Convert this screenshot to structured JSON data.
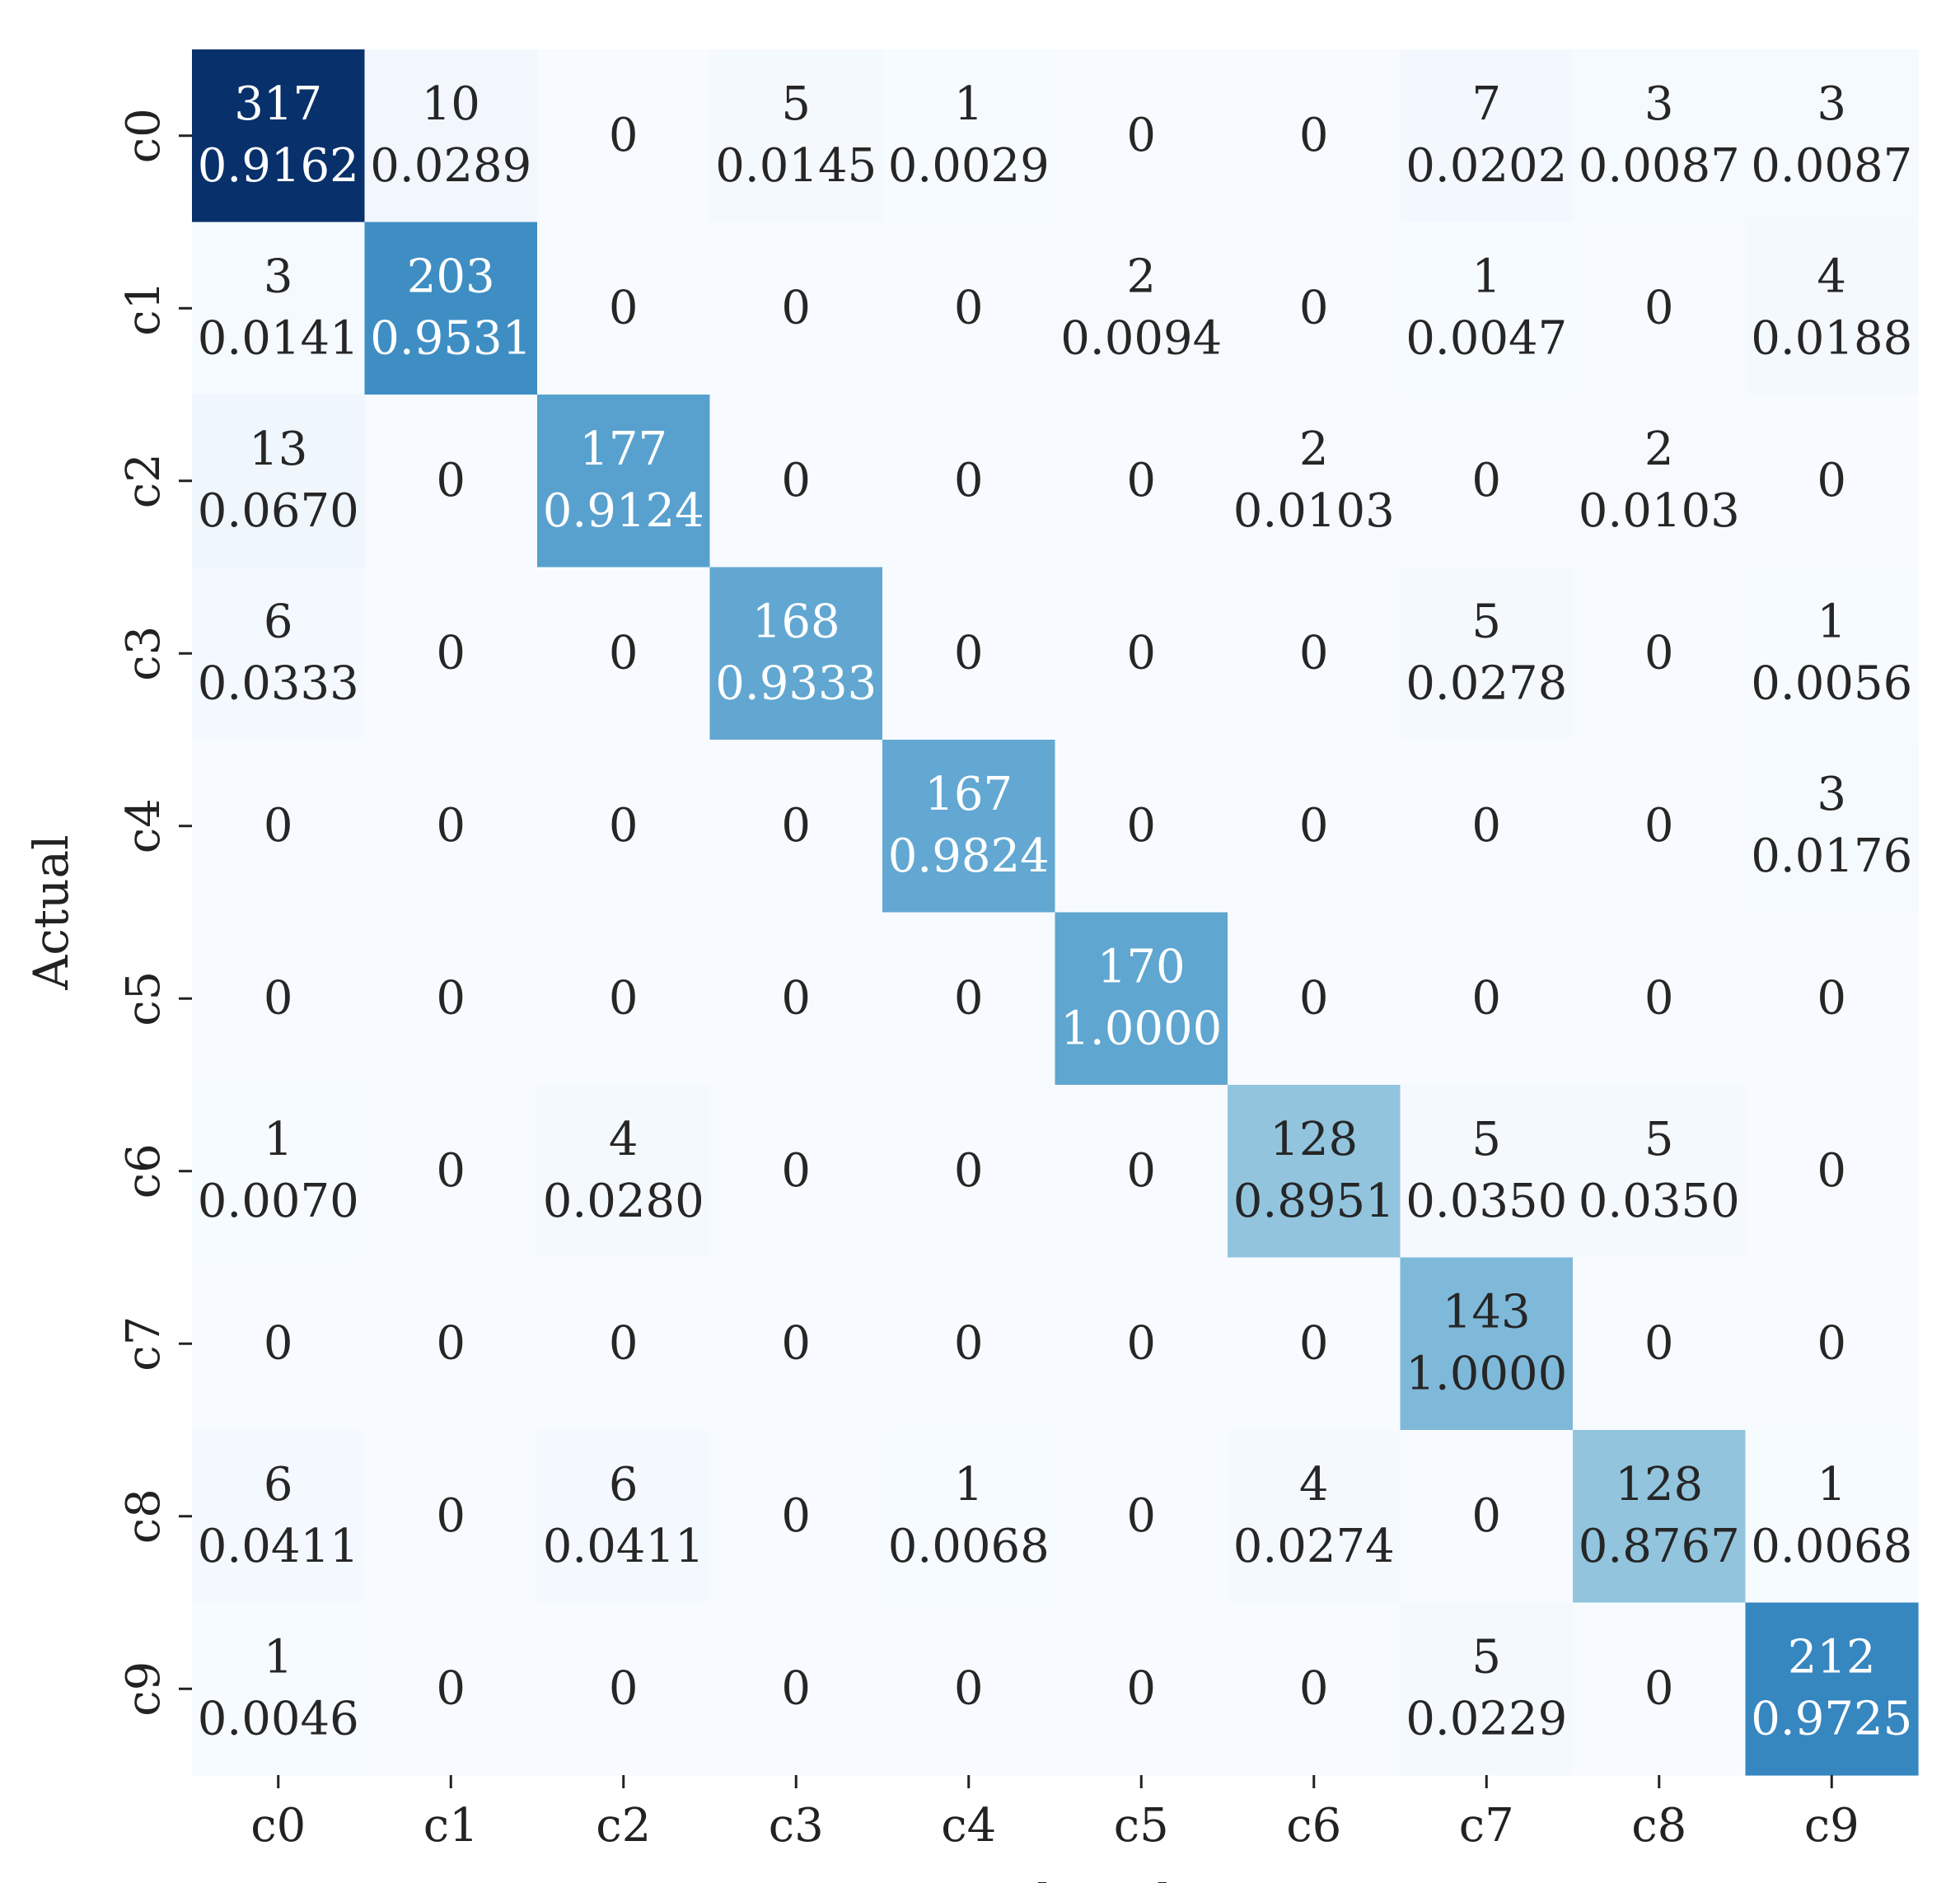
{
  "chart_data": {
    "type": "heatmap",
    "title": "",
    "xlabel": "Predicted",
    "ylabel": "Actual",
    "x_categories": [
      "c0",
      "c1",
      "c2",
      "c3",
      "c4",
      "c5",
      "c6",
      "c7",
      "c8",
      "c9"
    ],
    "y_categories": [
      "c0",
      "c1",
      "c2",
      "c3",
      "c4",
      "c5",
      "c6",
      "c7",
      "c8",
      "c9"
    ],
    "counts": [
      [
        317,
        10,
        0,
        5,
        1,
        0,
        0,
        7,
        3,
        3
      ],
      [
        3,
        203,
        0,
        0,
        0,
        2,
        0,
        1,
        0,
        4
      ],
      [
        13,
        0,
        177,
        0,
        0,
        0,
        2,
        0,
        2,
        0
      ],
      [
        6,
        0,
        0,
        168,
        0,
        0,
        0,
        5,
        0,
        1
      ],
      [
        0,
        0,
        0,
        0,
        167,
        0,
        0,
        0,
        0,
        3
      ],
      [
        0,
        0,
        0,
        0,
        0,
        170,
        0,
        0,
        0,
        0
      ],
      [
        1,
        0,
        4,
        0,
        0,
        0,
        128,
        5,
        5,
        0
      ],
      [
        0,
        0,
        0,
        0,
        0,
        0,
        0,
        143,
        0,
        0
      ],
      [
        6,
        0,
        6,
        0,
        1,
        0,
        4,
        0,
        128,
        1
      ],
      [
        1,
        0,
        0,
        0,
        0,
        0,
        0,
        5,
        0,
        212
      ]
    ],
    "ratios": [
      [
        "0.9162",
        "0.0289",
        "",
        "0.0145",
        "0.0029",
        "",
        "",
        "0.0202",
        "0.0087",
        "0.0087"
      ],
      [
        "0.0141",
        "0.9531",
        "",
        "",
        "",
        "0.0094",
        "",
        "0.0047",
        "",
        "0.0188"
      ],
      [
        "0.0670",
        "",
        "0.9124",
        "",
        "",
        "",
        "0.0103",
        "",
        "0.0103",
        ""
      ],
      [
        "0.0333",
        "",
        "",
        "0.9333",
        "",
        "",
        "",
        "0.0278",
        "",
        "0.0056"
      ],
      [
        "",
        "",
        "",
        "",
        "0.9824",
        "",
        "",
        "",
        "",
        "0.0176"
      ],
      [
        "",
        "",
        "",
        "",
        "",
        "1.0000",
        "",
        "",
        "",
        ""
      ],
      [
        "0.0070",
        "",
        "0.0280",
        "",
        "",
        "",
        "0.8951",
        "0.0350",
        "0.0350",
        ""
      ],
      [
        "",
        "",
        "",
        "",
        "",
        "",
        "",
        "1.0000",
        "",
        ""
      ],
      [
        "0.0411",
        "",
        "0.0411",
        "",
        "0.0068",
        "",
        "0.0274",
        "",
        "0.8767",
        "0.0068"
      ],
      [
        "0.0046",
        "",
        "",
        "",
        "",
        "",
        "",
        "0.0229",
        "",
        "0.9725"
      ]
    ],
    "color_scale": "Blues",
    "vmin": 0,
    "vmax": 317,
    "colorbar": false
  }
}
